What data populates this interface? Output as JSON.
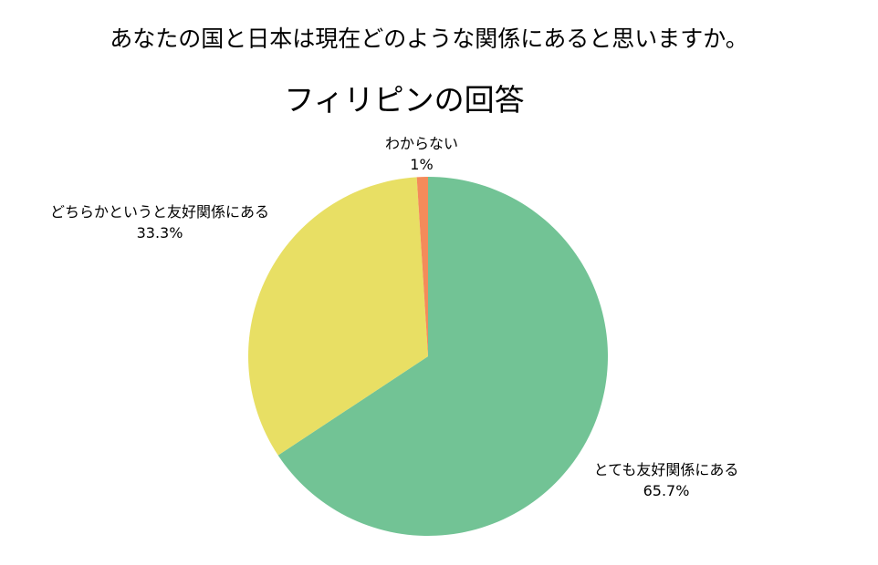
{
  "question": "あなたの国と日本は現在どのような関係にあると思いますか。",
  "chart_data": {
    "type": "pie",
    "title": "フィリピンの回答",
    "start": "top",
    "direction": "clockwise",
    "slices": [
      {
        "label": "とても友好関係にある",
        "value": 65.7,
        "display": "65.7%",
        "color": "#72c395"
      },
      {
        "label": "どちらかというと友好関係にある",
        "value": 33.3,
        "display": "33.3%",
        "color": "#e8df64"
      },
      {
        "label": "わからない",
        "value": 1,
        "display": "1%",
        "color": "#f48b5a"
      }
    ]
  }
}
